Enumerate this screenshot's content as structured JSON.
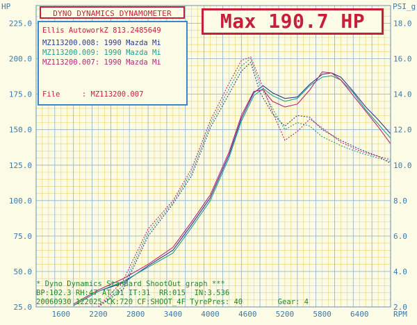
{
  "header": {
    "title": "DYNO DYNAMICS DYNAMOMETER",
    "max_label": "Max 190.7 HP"
  },
  "legend": {
    "shop": "Ellis AutoworkZ 813.2485649",
    "runs": [
      {
        "label": "MZ113200.008: 1990 Mazda Mi",
        "color": "#2a3aa0"
      },
      {
        "label": "MZ113200.009: 1990 Mazda Mi",
        "color": "#1ea08a"
      },
      {
        "label": "MZ113200.007: 1990 Mazda Mi",
        "color": "#c0237a"
      }
    ],
    "file_label": "File     : MZ113200.007"
  },
  "footer": {
    "line1": "* Dyno Dynamics Standard ShootOut graph ***",
    "line2": "BP:102.3 RH:47 AT:31 IT:31  RR:015  IN:3.536",
    "line3": "20060930 122025 CK:720 CF:SHOOT_4F TyrePres: 40        Gear: 4"
  },
  "chart_data": {
    "type": "line",
    "left_axis": {
      "label": "HP",
      "ticks": [
        "25.0",
        "50.0",
        "75.0",
        "100.0",
        "125.0",
        "150.0",
        "175.0",
        "200.0",
        "225.0"
      ],
      "ylim": [
        25,
        237.5
      ]
    },
    "right_axis": {
      "label": "PSI_g",
      "ticks": [
        "2.0",
        "4.0",
        "6.0",
        "8.0",
        "10.0",
        "12.0",
        "14.0",
        "16.0",
        "18.0"
      ],
      "ylim": [
        2,
        19
      ]
    },
    "x_axis": {
      "unit_label": "RPM",
      "ticks": [
        "1600",
        "2200",
        "2800",
        "3400",
        "4000",
        "4600",
        "5200",
        "5800",
        "6400"
      ],
      "xlim": [
        1200,
        6900
      ]
    },
    "grid": true,
    "series": [
      {
        "name": "MZ113200.008",
        "color": "#2a3aa0",
        "style": "solid",
        "x": [
          1800,
          2200,
          2600,
          3000,
          3400,
          3700,
          4000,
          4300,
          4500,
          4700,
          4850,
          5000,
          5200,
          5400,
          5600,
          5800,
          5950,
          6100,
          6300,
          6500,
          6700,
          6900
        ],
        "y": [
          26,
          36,
          42,
          54,
          65,
          83,
          102,
          132,
          158,
          176,
          181,
          176,
          172,
          173,
          182,
          189,
          190,
          187,
          177,
          166,
          157,
          147
        ]
      },
      {
        "name": "MZ113200.009",
        "color": "#1ea08a",
        "style": "solid",
        "x": [
          1800,
          2200,
          2600,
          3000,
          3400,
          3700,
          4000,
          4300,
          4500,
          4700,
          4850,
          5000,
          5200,
          5400,
          5600,
          5800,
          5950,
          6100,
          6300,
          6500,
          6700,
          6900
        ],
        "y": [
          26,
          36,
          43,
          53,
          63,
          81,
          100,
          130,
          156,
          174,
          179,
          174,
          170,
          172,
          181,
          187,
          188,
          185,
          176,
          164,
          154,
          144
        ]
      },
      {
        "name": "MZ113200.007",
        "color": "#c0237a",
        "style": "solid",
        "x": [
          1800,
          2200,
          2600,
          3000,
          3400,
          3700,
          4000,
          4300,
          4500,
          4700,
          4850,
          5000,
          5200,
          5400,
          5600,
          5800,
          5950,
          6100,
          6300,
          6500,
          6700,
          6900
        ],
        "y": [
          27,
          37,
          45,
          55,
          67,
          85,
          104,
          134,
          160,
          177,
          178,
          170,
          166,
          168,
          178,
          190.7,
          190,
          185,
          174,
          163,
          152,
          140
        ]
      },
      {
        "name": "MZ113200.008 boost",
        "color": "#2a3aa0",
        "style": "dashed",
        "x": [
          2200,
          2600,
          3000,
          3400,
          3700,
          4000,
          4300,
          4500,
          4650,
          4800,
          5000,
          5200,
          5400,
          5600,
          5800,
          6100,
          6400,
          6700,
          6900
        ],
        "y": [
          2.0,
          3.0,
          6.0,
          7.8,
          9.4,
          12.1,
          14.0,
          15.3,
          15.8,
          14.1,
          12.9,
          12.2,
          12.8,
          12.7,
          12.0,
          11.4,
          10.9,
          10.5,
          10.1
        ]
      },
      {
        "name": "MZ113200.009 boost",
        "color": "#1ea08a",
        "style": "dashed",
        "x": [
          2200,
          2600,
          3000,
          3400,
          3700,
          4000,
          4300,
          4500,
          4650,
          4800,
          5000,
          5200,
          5400,
          5600,
          5800,
          6100,
          6400,
          6700,
          6900
        ],
        "y": [
          2.0,
          3.2,
          6.2,
          7.9,
          9.6,
          12.3,
          14.3,
          15.6,
          16.0,
          14.5,
          13.2,
          12.0,
          12.4,
          12.2,
          11.6,
          11.1,
          10.7,
          10.4,
          10.2
        ]
      },
      {
        "name": "MZ113200.007 boost",
        "color": "#c0237a",
        "style": "dashed",
        "x": [
          2200,
          2600,
          3000,
          3400,
          3700,
          4000,
          4300,
          4500,
          4650,
          4800,
          5000,
          5200,
          5400,
          5600,
          5800,
          6100,
          6400,
          6700,
          6900
        ],
        "y": [
          2.0,
          3.5,
          6.4,
          8.0,
          9.8,
          12.5,
          14.6,
          15.9,
          16.1,
          14.8,
          13.0,
          11.4,
          11.9,
          12.6,
          12.1,
          11.3,
          10.8,
          10.5,
          10.3
        ]
      }
    ]
  }
}
